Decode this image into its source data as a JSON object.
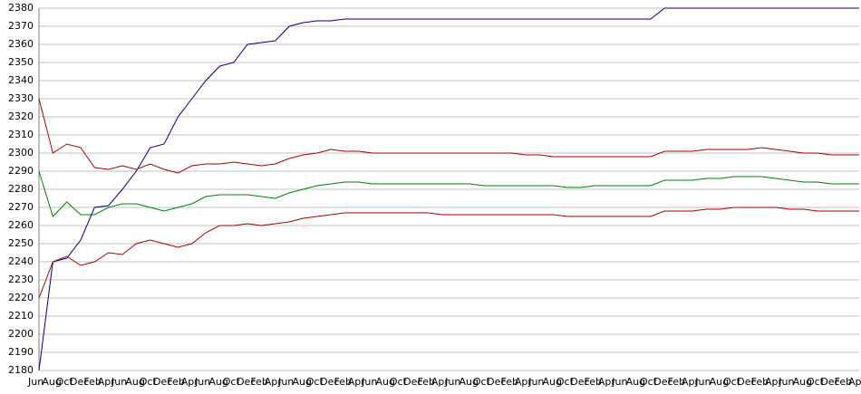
{
  "chart_data": {
    "type": "line",
    "categories": [
      "Jun",
      "Aug",
      "Oct",
      "Dec",
      "Feb",
      "Apr",
      "Jun",
      "Aug",
      "Oct",
      "Dec",
      "Feb",
      "Apr",
      "Jun",
      "Aug",
      "Oct",
      "Dec",
      "Feb",
      "Apr",
      "Jun",
      "Aug",
      "Oct",
      "Dec",
      "Feb",
      "Apr",
      "Jun",
      "Aug",
      "Oct",
      "Dec",
      "Feb",
      "Apr",
      "Jun",
      "Aug",
      "Oct",
      "Dec",
      "Feb",
      "Apr",
      "Jun",
      "Aug",
      "Oct",
      "Dec",
      "Feb",
      "Apr",
      "Jun",
      "Aug",
      "Oct",
      "Dec",
      "Feb",
      "Apr",
      "Jun",
      "Aug",
      "Oct",
      "Dec",
      "Feb",
      "Apr",
      "Jun",
      "Aug",
      "Oct",
      "Dec",
      "Feb",
      "Apr"
    ],
    "series": [
      {
        "color": "#000080",
        "values": [
          2180,
          2240,
          2242,
          2252,
          2270,
          2271,
          2280,
          2290,
          2303,
          2305,
          2320,
          2330,
          2340,
          2348,
          2350,
          2360,
          2361,
          2362,
          2370,
          2372,
          2373,
          2373,
          2374,
          2374,
          2374,
          2374,
          2374,
          2374,
          2374,
          2374,
          2374,
          2374,
          2374,
          2374,
          2374,
          2374,
          2374,
          2374,
          2374,
          2374,
          2374,
          2374,
          2374,
          2374,
          2374,
          2380,
          2380,
          2380,
          2380,
          2380,
          2380,
          2380,
          2380,
          2380,
          2380,
          2380,
          2380,
          2380,
          2380,
          2380
        ]
      },
      {
        "color": "#aa0000",
        "values": [
          2330,
          2300,
          2305,
          2303,
          2292,
          2291,
          2293,
          2291,
          2294,
          2291,
          2289,
          2293,
          2294,
          2294,
          2295,
          2294,
          2293,
          2294,
          2297,
          2299,
          2300,
          2302,
          2301,
          2301,
          2300,
          2300,
          2300,
          2300,
          2300,
          2300,
          2300,
          2300,
          2300,
          2300,
          2300,
          2299,
          2299,
          2298,
          2298,
          2298,
          2298,
          2298,
          2298,
          2298,
          2298,
          2301,
          2301,
          2301,
          2302,
          2302,
          2302,
          2302,
          2303,
          2302,
          2301,
          2300,
          2300,
          2299,
          2299,
          2299
        ]
      },
      {
        "color": "#008000",
        "values": [
          2290,
          2265,
          2273,
          2266,
          2266,
          2270,
          2272,
          2272,
          2270,
          2268,
          2270,
          2272,
          2276,
          2277,
          2277,
          2277,
          2276,
          2275,
          2278,
          2280,
          2282,
          2283,
          2284,
          2284,
          2283,
          2283,
          2283,
          2283,
          2283,
          2283,
          2283,
          2283,
          2282,
          2282,
          2282,
          2282,
          2282,
          2282,
          2281,
          2281,
          2282,
          2282,
          2282,
          2282,
          2282,
          2285,
          2285,
          2285,
          2286,
          2286,
          2287,
          2287,
          2287,
          2286,
          2285,
          2284,
          2284,
          2283,
          2283,
          2283
        ]
      },
      {
        "color": "#aa0000",
        "values": [
          2220,
          2240,
          2243,
          2238,
          2240,
          2245,
          2244,
          2250,
          2252,
          2250,
          2248,
          2250,
          2256,
          2260,
          2260,
          2261,
          2260,
          2261,
          2262,
          2264,
          2265,
          2266,
          2267,
          2267,
          2267,
          2267,
          2267,
          2267,
          2267,
          2266,
          2266,
          2266,
          2266,
          2266,
          2266,
          2266,
          2266,
          2266,
          2265,
          2265,
          2265,
          2265,
          2265,
          2265,
          2265,
          2268,
          2268,
          2268,
          2269,
          2269,
          2270,
          2270,
          2270,
          2270,
          2269,
          2269,
          2268,
          2268,
          2268,
          2268
        ]
      }
    ],
    "ylim": [
      2180,
      2380
    ],
    "yticks": [
      2180,
      2190,
      2200,
      2210,
      2220,
      2230,
      2240,
      2250,
      2260,
      2270,
      2280,
      2290,
      2300,
      2310,
      2320,
      2330,
      2340,
      2350,
      2360,
      2370,
      2380
    ],
    "grid": true
  }
}
